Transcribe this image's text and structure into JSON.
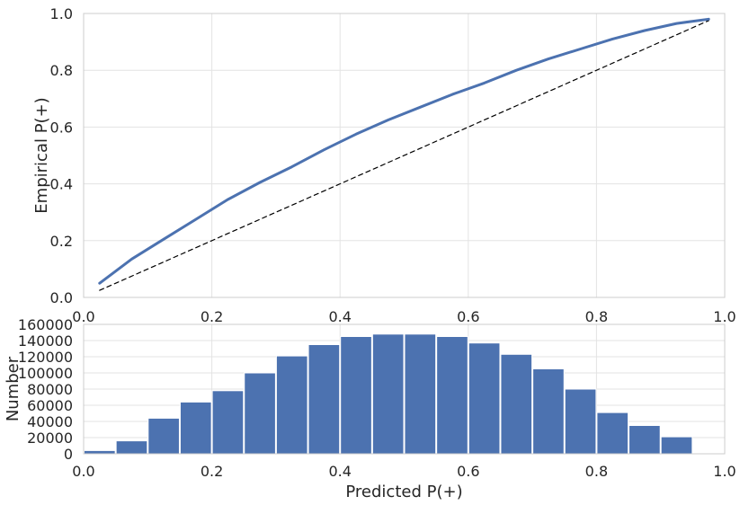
{
  "chart_data": [
    {
      "type": "line",
      "name": "calibration-curve",
      "title": "",
      "xlabel": "",
      "ylabel": "Empirical P(+)",
      "xlim": [
        0.0,
        1.0
      ],
      "ylim": [
        0.0,
        1.0
      ],
      "grid": true,
      "xticks": [
        "0.0",
        "0.2",
        "0.4",
        "0.6",
        "0.8",
        "1.0"
      ],
      "yticks": [
        "0.0",
        "0.2",
        "0.4",
        "0.6",
        "0.8",
        "1.0"
      ],
      "series": [
        {
          "name": "calibration",
          "color": "#4c72b0",
          "style": "solid",
          "x": [
            0.025,
            0.075,
            0.125,
            0.175,
            0.225,
            0.275,
            0.325,
            0.375,
            0.425,
            0.475,
            0.525,
            0.575,
            0.625,
            0.675,
            0.725,
            0.775,
            0.825,
            0.875,
            0.925,
            0.975
          ],
          "y": [
            0.05,
            0.135,
            0.205,
            0.275,
            0.345,
            0.405,
            0.46,
            0.52,
            0.575,
            0.625,
            0.67,
            0.715,
            0.755,
            0.8,
            0.84,
            0.875,
            0.91,
            0.94,
            0.965,
            0.98
          ]
        },
        {
          "name": "perfect-calibration",
          "color": "#000000",
          "style": "dashed",
          "x": [
            0.025,
            0.975
          ],
          "y": [
            0.025,
            0.975
          ]
        }
      ]
    },
    {
      "type": "bar",
      "name": "prediction-histogram",
      "title": "",
      "xlabel": "Predicted P(+)",
      "ylabel": "Number",
      "xlim": [
        0.0,
        1.0
      ],
      "ylim": [
        0,
        160000
      ],
      "grid": true,
      "bin_width": 0.05,
      "bin_starts": [
        0.0,
        0.05,
        0.1,
        0.15,
        0.2,
        0.25,
        0.3,
        0.35,
        0.4,
        0.45,
        0.5,
        0.55,
        0.6,
        0.65,
        0.7,
        0.75,
        0.8,
        0.85,
        0.9,
        0.95
      ],
      "values": [
        4000,
        16000,
        44000,
        64000,
        78000,
        100000,
        121000,
        135000,
        145000,
        148000,
        148000,
        145000,
        137000,
        123000,
        105000,
        80000,
        51000,
        35000,
        21000,
        0
      ],
      "color": "#4c72b0",
      "xticks": [
        "0.0",
        "0.2",
        "0.4",
        "0.6",
        "0.8",
        "1.0"
      ],
      "yticks": [
        "0",
        "20000",
        "40000",
        "60000",
        "80000",
        "100000",
        "120000",
        "140000",
        "160000"
      ]
    }
  ]
}
